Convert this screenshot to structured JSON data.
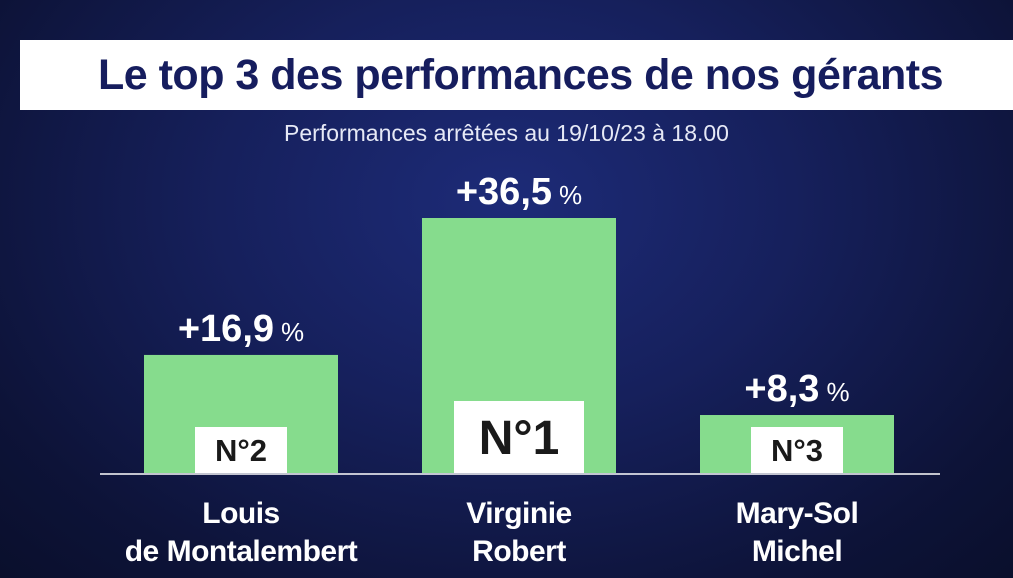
{
  "title": "Le top 3 des performances de nos gérants",
  "subtitle": "Performances arrêtées au 19/10/23 à 18.00",
  "colors": {
    "bar": "#86dc8d",
    "rank_box": "#ffffff",
    "title_text": "#161d5e",
    "background": "#16205c"
  },
  "chart_data": {
    "type": "bar",
    "title": "Le top 3 des performances de nos gérants",
    "subtitle": "Performances arrêtées au 19/10/23 à 18.00",
    "categories": [
      [
        "Louis",
        "de Montalembert"
      ],
      [
        "Virginie",
        "Robert"
      ],
      [
        "Mary-Sol",
        "Michel"
      ]
    ],
    "values": [
      16.9,
      36.5,
      8.3
    ],
    "value_labels": [
      "+16,9",
      "+36,5",
      "+8,3"
    ],
    "unit": "%",
    "ranks": [
      "N°2",
      "N°1",
      "N°3"
    ],
    "ylim": [
      0,
      36.5
    ],
    "grid": false,
    "legend": "none"
  }
}
